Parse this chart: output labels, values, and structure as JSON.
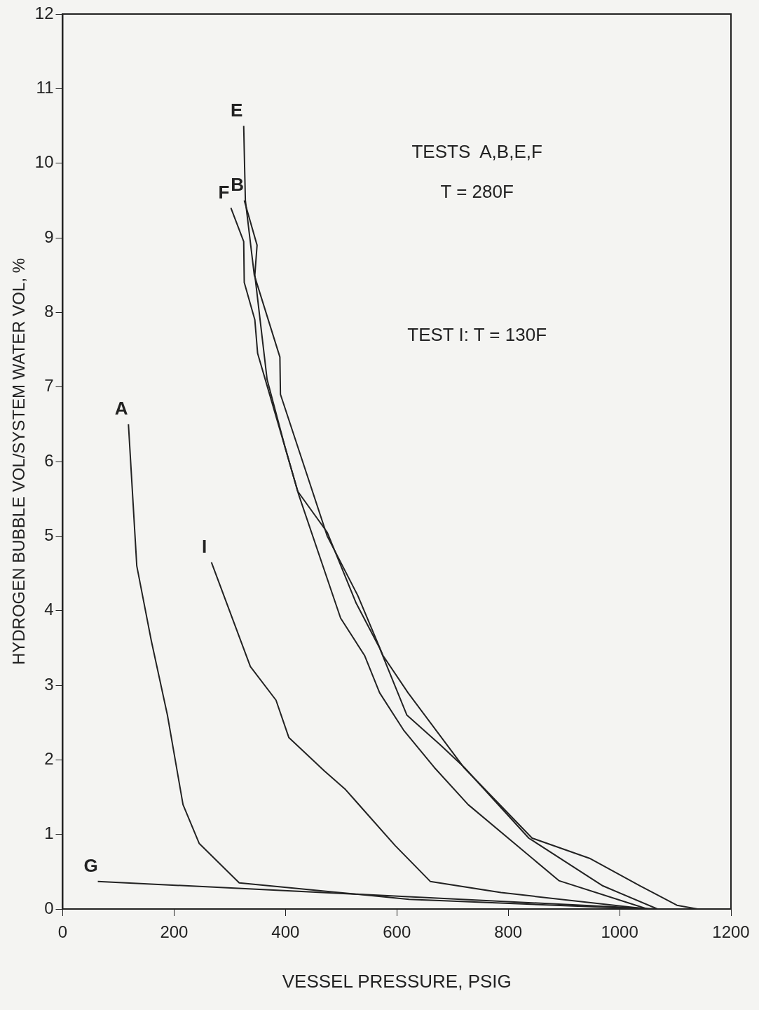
{
  "chart_data": {
    "type": "line",
    "xlabel": "VESSEL PRESSURE, PSIG",
    "ylabel": "HYDROGEN BUBBLE VOL/SYSTEM WATER VOL, %",
    "xlim": [
      0,
      1200
    ],
    "ylim": [
      0,
      12
    ],
    "xticks": [
      0,
      200,
      400,
      600,
      800,
      1000,
      1200
    ],
    "yticks": [
      0,
      1,
      2,
      3,
      4,
      5,
      6,
      7,
      8,
      9,
      10,
      11,
      12
    ],
    "grid": false,
    "legend": false,
    "marker": "none",
    "line_style": "solid",
    "annotations": [
      "TESTS  A,B,E,F",
      "T = 280F",
      "TEST I: T = 130F"
    ],
    "series": [
      {
        "name": "A",
        "color": "#222222",
        "x": [
          118,
          133,
          159,
          188,
          216,
          245,
          317,
          622,
          1050
        ],
        "values": [
          6.5,
          4.6,
          3.6,
          2.6,
          1.4,
          0.88,
          0.35,
          0.13,
          0
        ]
      },
      {
        "name": "B",
        "color": "#222222",
        "x": [
          326,
          349,
          345,
          367,
          399,
          422,
          475,
          527,
          569,
          618,
          678,
          721,
          837,
          970,
          1068
        ],
        "values": [
          9.5,
          8.9,
          8.5,
          7.1,
          6.2,
          5.6,
          5.05,
          4.1,
          3.5,
          2.6,
          2.2,
          1.9,
          0.95,
          0.31,
          0
        ]
      },
      {
        "name": "E",
        "color": "#222222",
        "x": [
          325,
          328,
          344,
          390,
          391,
          475,
          530,
          575,
          620,
          680,
          720,
          843,
          946,
          1037,
          1103,
          1140
        ],
        "values": [
          10.5,
          9.5,
          8.5,
          7.4,
          6.9,
          5.0,
          4.2,
          3.4,
          2.9,
          2.3,
          1.9,
          0.95,
          0.68,
          0.31,
          0.05,
          0
        ]
      },
      {
        "name": "F",
        "color": "#222222",
        "x": [
          302,
          325,
          326,
          345,
          350,
          395,
          424,
          499,
          542,
          569,
          612,
          667,
          728,
          891,
          1050
        ],
        "values": [
          9.4,
          8.95,
          8.4,
          7.9,
          7.45,
          6.3,
          5.55,
          3.9,
          3.4,
          2.9,
          2.4,
          1.9,
          1.4,
          0.38,
          0
        ]
      },
      {
        "name": "G",
        "color": "#222222",
        "x": [
          63,
          1067
        ],
        "values": [
          0.37,
          0
        ]
      },
      {
        "name": "I",
        "color": "#222222",
        "x": [
          267,
          337,
          383,
          406,
          470,
          508,
          597,
          660,
          787,
          1050
        ],
        "values": [
          4.65,
          3.25,
          2.8,
          2.3,
          1.85,
          1.6,
          0.85,
          0.37,
          0.22,
          0
        ]
      }
    ]
  }
}
